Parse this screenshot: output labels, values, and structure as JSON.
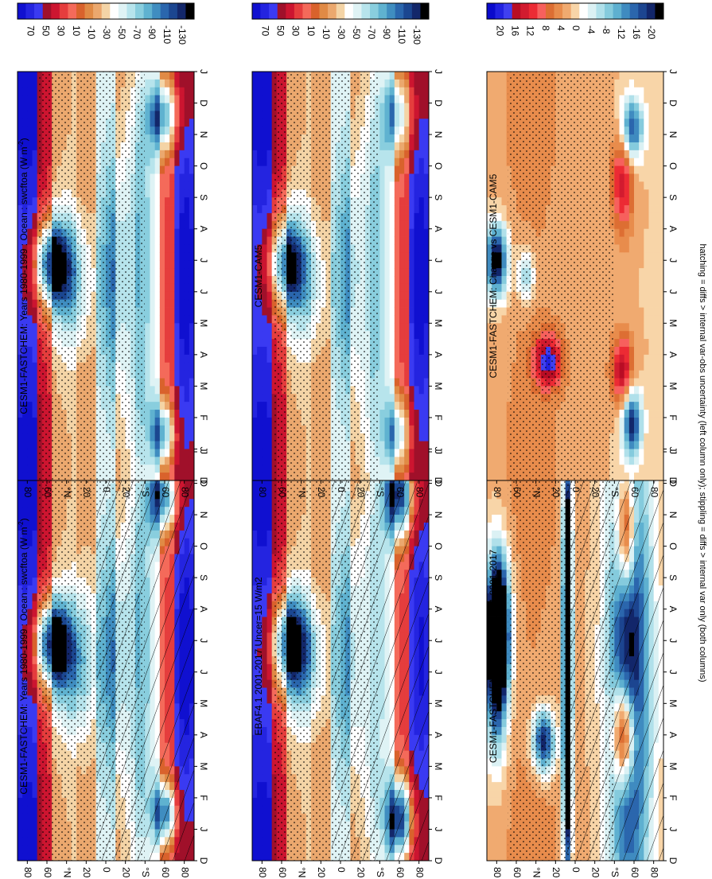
{
  "figure": {
    "footnote": "hatching = diffs > internal var-obs uncertainty (left column only); stippling = diffs > internal var only (both columns)"
  },
  "chart_data": [
    {
      "type": "heatmap",
      "title": "CESM1-FASTCHEM: Years 1980-1999 : Ocean : swcftoa (W m",
      "title_sup": "-2",
      "title_close": ")",
      "xlabel": "",
      "ylabel": "",
      "x_ticks": [
        "D",
        "J",
        "F",
        "M",
        "A",
        "M",
        "J",
        "J",
        "A",
        "S",
        "O",
        "N",
        "D",
        "J"
      ],
      "y_ticks": [
        "80",
        "60",
        "°N",
        "20",
        "0",
        "20",
        "°S",
        "60",
        "80"
      ],
      "colorbar_ticks": [
        "70",
        "50",
        "30",
        "10",
        "-10",
        "-30",
        "-50",
        "-70",
        "-90",
        "-110",
        "-130"
      ],
      "colorbar_range": [
        80,
        -140
      ],
      "colormap": "abs",
      "hatching": true,
      "blobs": [
        {
          "month": 6.9,
          "lat": 55,
          "sm": 0.9,
          "slat": 12,
          "amp": -135
        },
        {
          "month": 6.3,
          "lat": 35,
          "sm": 1.5,
          "slat": 14,
          "amp": -60
        },
        {
          "month": 1.5,
          "lat": -60,
          "sm": 0.7,
          "slat": 8,
          "amp": -115
        },
        {
          "month": 11.6,
          "lat": -58,
          "sm": 0.8,
          "slat": 10,
          "amp": -110
        },
        {
          "month": 6.5,
          "lat": -8,
          "sm": 2.5,
          "slat": 10,
          "amp": -45
        },
        {
          "month": 3,
          "lat": -35,
          "sm": 3,
          "slat": 12,
          "amp": -40
        },
        {
          "month": 9,
          "lat": -35,
          "sm": 3,
          "slat": 12,
          "amp": -45
        },
        {
          "month": 0.5,
          "lat": 80,
          "sm": 3,
          "slat": 15,
          "amp": 35
        },
        {
          "month": 12,
          "lat": 80,
          "sm": 3,
          "slat": 15,
          "amp": 35
        },
        {
          "month": 6.5,
          "lat": -82,
          "sm": 3,
          "slat": 8,
          "amp": 40
        },
        {
          "month": 6.5,
          "lat": 20,
          "sm": 2.5,
          "slat": 8,
          "amp": -20
        }
      ]
    },
    {
      "type": "heatmap",
      "title": "CESM1-FASTCHEM: Years 1980-1999 : Ocean : swcftoa (W m",
      "title_sup": "-2",
      "title_close": ")",
      "xlabel": "",
      "ylabel": "",
      "x_ticks": [
        "D",
        "J",
        "F",
        "M",
        "A",
        "M",
        "J",
        "J",
        "A",
        "S",
        "O",
        "N",
        "D",
        "J"
      ],
      "y_ticks": [
        "80",
        "60",
        "°N",
        "20",
        "0",
        "20",
        "°S",
        "60",
        "80"
      ],
      "colorbar_ticks": [
        "70",
        "50",
        "30",
        "10",
        "-10",
        "-30",
        "-50",
        "-70",
        "-90",
        "-110",
        "-130"
      ],
      "colorbar_range": [
        80,
        -140
      ],
      "colormap": "abs",
      "hatching": false,
      "blobs": [
        {
          "month": 6.9,
          "lat": 55,
          "sm": 0.9,
          "slat": 12,
          "amp": -130
        },
        {
          "month": 6.3,
          "lat": 35,
          "sm": 1.5,
          "slat": 14,
          "amp": -55
        },
        {
          "month": 1.5,
          "lat": -58,
          "sm": 0.7,
          "slat": 8,
          "amp": -100
        },
        {
          "month": 11.6,
          "lat": -58,
          "sm": 0.8,
          "slat": 10,
          "amp": -100
        },
        {
          "month": 6.5,
          "lat": -8,
          "sm": 2.5,
          "slat": 10,
          "amp": -45
        },
        {
          "month": 3,
          "lat": -35,
          "sm": 3,
          "slat": 12,
          "amp": -40
        },
        {
          "month": 9,
          "lat": -35,
          "sm": 3,
          "slat": 12,
          "amp": -45
        },
        {
          "month": 0.5,
          "lat": 80,
          "sm": 3,
          "slat": 15,
          "amp": 35
        },
        {
          "month": 12,
          "lat": 80,
          "sm": 3,
          "slat": 15,
          "amp": 35
        },
        {
          "month": 6.5,
          "lat": -82,
          "sm": 3,
          "slat": 8,
          "amp": 40
        }
      ]
    },
    {
      "type": "heatmap",
      "title": "EBAF4.1 2001-2017 Uncer=15 W/m2",
      "xlabel": "",
      "ylabel": "",
      "x_ticks": [
        "D",
        "J",
        "F",
        "M",
        "A",
        "M",
        "J",
        "J",
        "A",
        "S",
        "O",
        "N",
        "D",
        "J"
      ],
      "y_ticks": [
        "80",
        "60",
        "°N",
        "20",
        "0",
        "20",
        "°S",
        "60",
        "80"
      ],
      "colorbar_ticks": [
        "70",
        "50",
        "30",
        "10",
        "-10",
        "-30",
        "-50",
        "-70",
        "-90",
        "-110",
        "-130"
      ],
      "colorbar_range": [
        80,
        -140
      ],
      "colormap": "abs",
      "hatching": true,
      "blobs": [
        {
          "month": 6.9,
          "lat": 52,
          "sm": 1.0,
          "slat": 12,
          "amp": -120
        },
        {
          "month": 6.3,
          "lat": 35,
          "sm": 1.5,
          "slat": 14,
          "amp": -50
        },
        {
          "month": 1.3,
          "lat": -60,
          "sm": 0.9,
          "slat": 9,
          "amp": -140
        },
        {
          "month": 11.7,
          "lat": -60,
          "sm": 1.0,
          "slat": 10,
          "amp": -140
        },
        {
          "month": 6.5,
          "lat": -8,
          "sm": 2.5,
          "slat": 10,
          "amp": -40
        },
        {
          "month": 3,
          "lat": -35,
          "sm": 3,
          "slat": 12,
          "amp": -30
        },
        {
          "month": 9,
          "lat": -35,
          "sm": 3,
          "slat": 12,
          "amp": -35
        },
        {
          "month": 0.5,
          "lat": 80,
          "sm": 3,
          "slat": 15,
          "amp": 35
        },
        {
          "month": 12,
          "lat": 80,
          "sm": 3,
          "slat": 15,
          "amp": 35
        },
        {
          "month": 6.5,
          "lat": -82,
          "sm": 3,
          "slat": 8,
          "amp": 30
        }
      ]
    },
    {
      "type": "heatmap",
      "title": "CESM1-CAM5",
      "xlabel": "",
      "ylabel": "",
      "x_ticks": [
        "D",
        "J",
        "F",
        "M",
        "A",
        "M",
        "J",
        "J",
        "A",
        "S",
        "O",
        "N",
        "D",
        "J"
      ],
      "y_ticks": [
        "80",
        "60",
        "°N",
        "20",
        "0",
        "20",
        "°S",
        "60",
        "80"
      ],
      "colorbar_ticks": [
        "70",
        "50",
        "30",
        "10",
        "-10",
        "-30",
        "-50",
        "-70",
        "-90",
        "-110",
        "-130"
      ],
      "colorbar_range": [
        80,
        -140
      ],
      "colormap": "abs",
      "hatching": false,
      "blobs": [
        {
          "month": 6.9,
          "lat": 55,
          "sm": 1.0,
          "slat": 12,
          "amp": -110
        },
        {
          "month": 6.3,
          "lat": 35,
          "sm": 1.5,
          "slat": 14,
          "amp": -45
        },
        {
          "month": 1.5,
          "lat": -58,
          "sm": 0.8,
          "slat": 9,
          "amp": -80
        },
        {
          "month": 11.6,
          "lat": -58,
          "sm": 0.9,
          "slat": 10,
          "amp": -80
        },
        {
          "month": 6.5,
          "lat": -8,
          "sm": 2.5,
          "slat": 10,
          "amp": -40
        },
        {
          "month": 3,
          "lat": -35,
          "sm": 3,
          "slat": 12,
          "amp": -35
        },
        {
          "month": 9,
          "lat": -35,
          "sm": 3,
          "slat": 12,
          "amp": -40
        },
        {
          "month": 0.5,
          "lat": 80,
          "sm": 3,
          "slat": 15,
          "amp": 35
        },
        {
          "month": 12,
          "lat": 80,
          "sm": 3,
          "slat": 15,
          "amp": 35
        },
        {
          "month": 6.5,
          "lat": -82,
          "sm": 3,
          "slat": 8,
          "amp": 40
        }
      ]
    },
    {
      "type": "heatmap",
      "title": "CESM1-FASTCHEM: Bias vs EBAF4.1 2001-2017",
      "xlabel": "",
      "ylabel": "",
      "x_ticks": [
        "D",
        "J",
        "F",
        "M",
        "A",
        "M",
        "J",
        "J",
        "A",
        "S",
        "O",
        "N",
        "D",
        "J"
      ],
      "y_ticks": [
        "80",
        "60",
        "°N",
        "20",
        "0",
        "20",
        "°S",
        "60",
        "80"
      ],
      "colorbar_ticks": [
        "20",
        "16",
        "12",
        "8",
        "4",
        "0",
        "-4",
        "-8",
        "-12",
        "-16",
        "-20"
      ],
      "colorbar_range": [
        22,
        -22
      ],
      "colormap": "diff",
      "hatching": true,
      "blobs": [
        {
          "month": 0.5,
          "lat": 45,
          "sm": 4,
          "slat": 30,
          "amp": 3
        },
        {
          "month": 12,
          "lat": 45,
          "sm": 4,
          "slat": 30,
          "amp": 3
        },
        {
          "month": 6,
          "lat": -55,
          "sm": 6,
          "slat": 15,
          "amp": -24
        },
        {
          "month": 3.8,
          "lat": 32,
          "sm": 0.7,
          "slat": 8,
          "amp": -22
        },
        {
          "month": 6.5,
          "lat": 80,
          "sm": 2,
          "slat": 8,
          "amp": -26
        },
        {
          "month": 7.5,
          "lat": 78,
          "sm": 1.5,
          "slat": 8,
          "amp": -22
        },
        {
          "month": 3.5,
          "lat": 8,
          "sm": 3,
          "slat": 3,
          "amp": -30
        },
        {
          "month": 9,
          "lat": 8,
          "sm": 3,
          "slat": 3,
          "amp": -30
        },
        {
          "month": 4,
          "lat": -50,
          "sm": 1.2,
          "slat": 8,
          "amp": 26
        },
        {
          "month": 10.5,
          "lat": -52,
          "sm": 1.5,
          "slat": 7,
          "amp": 22
        }
      ]
    },
    {
      "type": "heatmap",
      "title": "CESM1-FASTCHEM: Change vs CESM1-CAM5",
      "xlabel": "",
      "ylabel": "",
      "x_ticks": [
        "D",
        "J",
        "F",
        "M",
        "A",
        "M",
        "J",
        "J",
        "A",
        "S",
        "O",
        "N",
        "D",
        "J"
      ],
      "y_ticks": [
        "80",
        "60",
        "°N",
        "20",
        "0",
        "20",
        "°S",
        "60",
        "80"
      ],
      "colorbar_ticks": [
        "20",
        "16",
        "12",
        "8",
        "4",
        "0",
        "-4",
        "-8",
        "-12",
        "-16",
        "-20"
      ],
      "colorbar_range": [
        22,
        -22
      ],
      "colormap": "diff",
      "hatching": false,
      "blobs": [
        {
          "month": 0.5,
          "lat": 45,
          "sm": 4,
          "slat": 30,
          "amp": 3
        },
        {
          "month": 12,
          "lat": 45,
          "sm": 4,
          "slat": 30,
          "amp": 3
        },
        {
          "month": 3.8,
          "lat": 28,
          "sm": 0.6,
          "slat": 10,
          "amp": 16
        },
        {
          "month": 7,
          "lat": 80,
          "sm": 0.8,
          "slat": 8,
          "amp": -24
        },
        {
          "month": 1.8,
          "lat": -58,
          "sm": 0.8,
          "slat": 7,
          "amp": -20
        },
        {
          "month": 11.2,
          "lat": -58,
          "sm": 0.7,
          "slat": 8,
          "amp": -18
        },
        {
          "month": 3.5,
          "lat": -48,
          "sm": 0.8,
          "slat": 8,
          "amp": 14
        },
        {
          "month": 9.5,
          "lat": -48,
          "sm": 1.2,
          "slat": 8,
          "amp": 12
        },
        {
          "month": 6.5,
          "lat": 50,
          "sm": 0.6,
          "slat": 6,
          "amp": -10
        }
      ]
    }
  ]
}
